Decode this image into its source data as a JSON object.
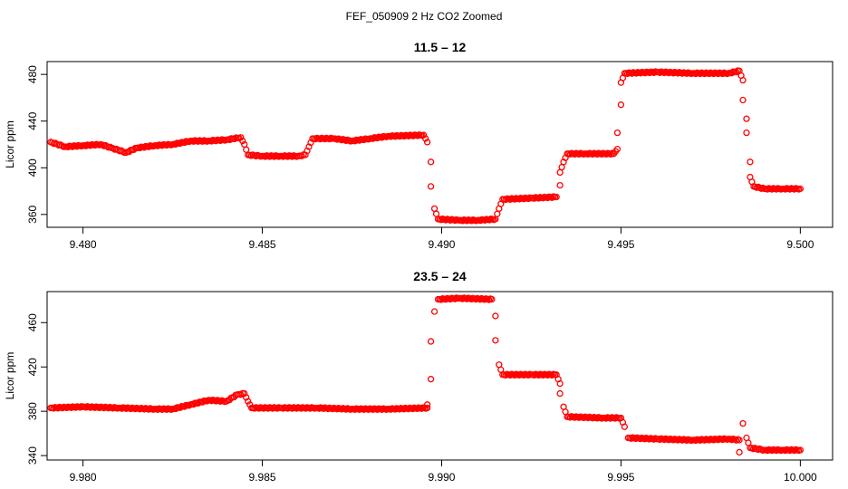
{
  "figure": {
    "suptitle": "FEF_050909  2 Hz CO2 Zoomed"
  },
  "colors": {
    "points": "#ff0000",
    "axes": "#000000",
    "background": "#ffffff"
  },
  "chart_data": [
    {
      "type": "scatter",
      "title": "11.5 – 12",
      "xlabel": "",
      "ylabel": "Licor ppm",
      "xlim": [
        9.479,
        9.5009
      ],
      "ylim": [
        349,
        491
      ],
      "xticks": [
        9.48,
        9.485,
        9.49,
        9.495,
        9.5
      ],
      "xtick_labels": [
        "9.480",
        "9.485",
        "9.490",
        "9.495",
        "9.500"
      ],
      "yticks": [
        360,
        400,
        440,
        480
      ],
      "ytick_labels": [
        "360",
        "400",
        "440",
        "480"
      ],
      "marker": "open-circle",
      "grid": false,
      "series": [
        {
          "points": [
            [
              9.4791,
              422
            ],
            [
              9.4795,
              418
            ],
            [
              9.48,
              419
            ],
            [
              9.4805,
              420
            ],
            [
              9.4808,
              417
            ],
            [
              9.4812,
              413
            ],
            [
              9.4815,
              417
            ],
            [
              9.482,
              419
            ],
            [
              9.4825,
              420
            ],
            [
              9.483,
              423
            ],
            [
              9.4835,
              423
            ],
            [
              9.484,
              424
            ],
            [
              9.4844,
              426
            ],
            [
              9.4845,
              420
            ],
            [
              9.4846,
              411
            ],
            [
              9.485,
              410
            ],
            [
              9.4855,
              410
            ],
            [
              9.486,
              410
            ],
            [
              9.4862,
              411
            ],
            [
              9.4863,
              418
            ],
            [
              9.4864,
              425
            ],
            [
              9.487,
              425
            ],
            [
              9.4875,
              423
            ],
            [
              9.488,
              425
            ],
            [
              9.4885,
              427
            ],
            [
              9.4895,
              428
            ],
            [
              9.4896,
              422
            ],
            [
              9.4897,
              405
            ],
            [
              9.4897,
              384
            ],
            [
              9.4898,
              365
            ],
            [
              9.4899,
              356
            ],
            [
              9.4905,
              355
            ],
            [
              9.491,
              355
            ],
            [
              9.4915,
              356
            ],
            [
              9.4916,
              365
            ],
            [
              9.4917,
              373
            ],
            [
              9.4925,
              374
            ],
            [
              9.4932,
              375
            ],
            [
              9.4933,
              385
            ],
            [
              9.4933,
              396
            ],
            [
              9.4934,
              405
            ],
            [
              9.4935,
              412
            ],
            [
              9.494,
              412
            ],
            [
              9.4948,
              412
            ],
            [
              9.4949,
              416
            ],
            [
              9.4949,
              430
            ],
            [
              9.495,
              454
            ],
            [
              9.495,
              473
            ],
            [
              9.4951,
              481
            ],
            [
              9.496,
              482
            ],
            [
              9.497,
              481
            ],
            [
              9.498,
              481
            ],
            [
              9.4983,
              483
            ],
            [
              9.4984,
              475
            ],
            [
              9.4984,
              458
            ],
            [
              9.4985,
              442
            ],
            [
              9.4985,
              430
            ],
            [
              9.4986,
              405
            ],
            [
              9.4986,
              392
            ],
            [
              9.4987,
              384
            ],
            [
              9.499,
              382
            ],
            [
              9.4995,
              382
            ],
            [
              9.5,
              382
            ]
          ]
        }
      ]
    },
    {
      "type": "scatter",
      "title": "23.5 – 24",
      "xlabel": "",
      "ylabel": "Licor ppm",
      "xlim": [
        9.979,
        10.0009
      ],
      "ylim": [
        336,
        488
      ],
      "xticks": [
        9.98,
        9.985,
        9.99,
        9.995,
        10.0
      ],
      "xtick_labels": [
        "9.980",
        "9.985",
        "9.990",
        "9.995",
        "10.000"
      ],
      "yticks": [
        340,
        380,
        420,
        460
      ],
      "ytick_labels": [
        "340",
        "380",
        "420",
        "460"
      ],
      "marker": "open-circle",
      "grid": false,
      "series": [
        {
          "points": [
            [
              9.9791,
              383
            ],
            [
              9.98,
              384
            ],
            [
              9.981,
              383
            ],
            [
              9.982,
              382
            ],
            [
              9.9825,
              382
            ],
            [
              9.983,
              386
            ],
            [
              9.9835,
              390
            ],
            [
              9.984,
              389
            ],
            [
              9.9843,
              395
            ],
            [
              9.9845,
              396
            ],
            [
              9.9846,
              389
            ],
            [
              9.9847,
              383
            ],
            [
              9.9855,
              383
            ],
            [
              9.9865,
              383
            ],
            [
              9.9875,
              382
            ],
            [
              9.9885,
              382
            ],
            [
              9.9896,
              383
            ],
            [
              9.9896,
              386
            ],
            [
              9.9897,
              409
            ],
            [
              9.9897,
              443
            ],
            [
              9.9898,
              470
            ],
            [
              9.9899,
              481
            ],
            [
              9.9905,
              482
            ],
            [
              9.9914,
              481
            ],
            [
              9.9915,
              466
            ],
            [
              9.9915,
              444
            ],
            [
              9.9916,
              422
            ],
            [
              9.9917,
              413
            ],
            [
              9.9925,
              413
            ],
            [
              9.9932,
              413
            ],
            [
              9.9933,
              405
            ],
            [
              9.9933,
              396
            ],
            [
              9.9934,
              384
            ],
            [
              9.9935,
              375
            ],
            [
              9.9945,
              374
            ],
            [
              9.995,
              374
            ],
            [
              9.9951,
              366
            ],
            [
              9.9952,
              356
            ],
            [
              9.996,
              355
            ],
            [
              9.997,
              354
            ],
            [
              9.998,
              355
            ],
            [
              9.9983,
              354
            ],
            [
              9.9983,
              343
            ],
            [
              9.9984,
              369
            ],
            [
              9.9985,
              356
            ],
            [
              9.9986,
              347
            ],
            [
              9.999,
              345
            ],
            [
              9.9995,
              345
            ],
            [
              10.0,
              345
            ]
          ]
        }
      ]
    }
  ]
}
